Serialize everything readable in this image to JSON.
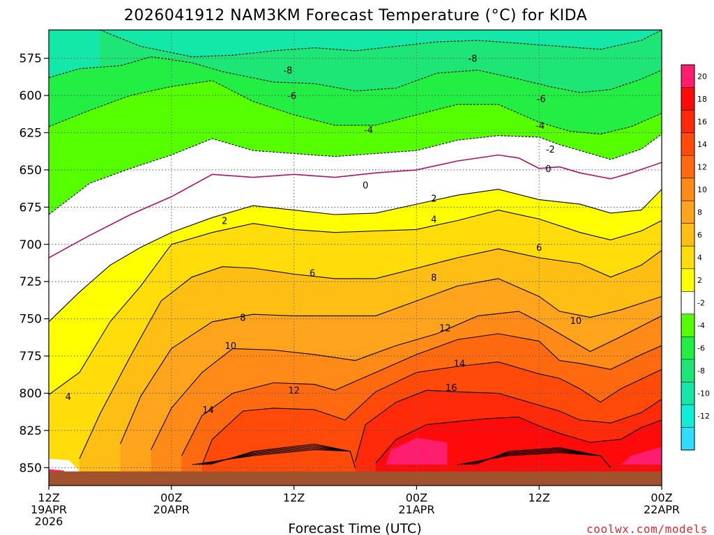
{
  "chart_data": {
    "type": "heatmap",
    "title": "2026041912 NAM3KM Forecast Temperature (°C) for KIDA",
    "xlabel": "Forecast Time (UTC)",
    "ylabel": "",
    "credit": "coolwx.com/models",
    "x_ticks": [
      {
        "hours": 0,
        "line1": "12Z",
        "line2": "19APR",
        "line3": "2026"
      },
      {
        "hours": 12,
        "line1": "00Z",
        "line2": "20APR",
        "line3": ""
      },
      {
        "hours": 24,
        "line1": "12Z",
        "line2": "",
        "line3": ""
      },
      {
        "hours": 36,
        "line1": "00Z",
        "line2": "21APR",
        "line3": ""
      },
      {
        "hours": 48,
        "line1": "12Z",
        "line2": "",
        "line3": ""
      },
      {
        "hours": 60,
        "line1": "00Z",
        "line2": "22APR",
        "line3": ""
      }
    ],
    "xlim": [
      0,
      60
    ],
    "y_ticks": [
      "575",
      "600",
      "625",
      "650",
      "675",
      "700",
      "725",
      "750",
      "775",
      "800",
      "825",
      "850"
    ],
    "y_tick_values": [
      575,
      600,
      625,
      650,
      675,
      700,
      725,
      750,
      775,
      800,
      825,
      850
    ],
    "ylim_hpa": [
      556,
      862
    ],
    "grid": true,
    "legend": "right",
    "colorbar": {
      "labels": [
        "20",
        "18",
        "16",
        "14",
        "12",
        "10",
        "8",
        "6",
        "4",
        "2",
        "-2",
        "-4",
        "-6",
        "-8",
        "-10",
        "-12"
      ],
      "bins": [
        {
          "range": "> 20",
          "color": "#ff1e6e"
        },
        {
          "range": "18 to 20",
          "color": "#ff0a0a"
        },
        {
          "range": "16 to 18",
          "color": "#ff2a0a"
        },
        {
          "range": "14 to 16",
          "color": "#ff4a0a"
        },
        {
          "range": "12 to 14",
          "color": "#ff6a10"
        },
        {
          "range": "10 to 12",
          "color": "#ff8a18"
        },
        {
          "range": "8 to 10",
          "color": "#ffa41c"
        },
        {
          "range": "6 to 8",
          "color": "#ffbe14"
        },
        {
          "range": "4 to 6",
          "color": "#ffdc0a"
        },
        {
          "range": "2 to 4",
          "color": "#ffff00"
        },
        {
          "range": "-2 to 2",
          "color": "#ffffff"
        },
        {
          "range": "-4 to -2",
          "color": "#55ff00"
        },
        {
          "range": "-6 to -4",
          "color": "#22ee44"
        },
        {
          "range": "-8 to -6",
          "color": "#1de676"
        },
        {
          "range": "-10 to -8",
          "color": "#14e8a8"
        },
        {
          "range": "-12 to -10",
          "color": "#10eed8"
        },
        {
          "range": "< -12",
          "color": "#30dcff"
        }
      ]
    },
    "contours": [
      {
        "value": -8,
        "label": "-8",
        "style": "dashed",
        "points": [
          [
            5,
            556
          ],
          [
            9,
            567
          ],
          [
            14,
            574
          ],
          [
            18,
            573
          ],
          [
            22,
            570
          ],
          [
            26,
            568
          ],
          [
            30,
            570
          ],
          [
            34,
            567
          ],
          [
            38,
            564
          ],
          [
            42,
            563
          ],
          [
            46,
            565
          ],
          [
            50,
            567
          ],
          [
            54,
            569
          ],
          [
            58,
            563
          ],
          [
            60,
            556
          ]
        ]
      },
      {
        "value": -6,
        "label": "-6",
        "style": "dashed",
        "points": [
          [
            0,
            588
          ],
          [
            3,
            582
          ],
          [
            7,
            580
          ],
          [
            10,
            574
          ],
          [
            14,
            578
          ],
          [
            17,
            584
          ],
          [
            22,
            591
          ],
          [
            26,
            592
          ],
          [
            30,
            597
          ],
          [
            34,
            595
          ],
          [
            38,
            585
          ],
          [
            42,
            583
          ],
          [
            46,
            589
          ],
          [
            49,
            594
          ],
          [
            52,
            598
          ],
          [
            55,
            596
          ],
          [
            58,
            589
          ],
          [
            60,
            583
          ]
        ]
      },
      {
        "value": -4,
        "label": "-4",
        "style": "dashed",
        "points": [
          [
            0,
            621
          ],
          [
            4,
            610
          ],
          [
            8,
            600
          ],
          [
            12,
            594
          ],
          [
            16,
            590
          ],
          [
            20,
            604
          ],
          [
            24,
            613
          ],
          [
            28,
            620
          ],
          [
            32,
            620
          ],
          [
            36,
            613
          ],
          [
            40,
            606
          ],
          [
            44,
            606
          ],
          [
            48,
            618
          ],
          [
            51,
            624
          ],
          [
            54,
            626
          ],
          [
            57,
            621
          ],
          [
            60,
            612
          ]
        ]
      },
      {
        "value": -2,
        "label": "-2",
        "style": "dashed",
        "points": [
          [
            0,
            680
          ],
          [
            4,
            659
          ],
          [
            8,
            649
          ],
          [
            12,
            640
          ],
          [
            16,
            629
          ],
          [
            20,
            637
          ],
          [
            24,
            639
          ],
          [
            28,
            641
          ],
          [
            32,
            639
          ],
          [
            36,
            637
          ],
          [
            40,
            630
          ],
          [
            44,
            627
          ],
          [
            48,
            628
          ],
          [
            50,
            633
          ],
          [
            52,
            637
          ],
          [
            55,
            643
          ],
          [
            58,
            636
          ],
          [
            60,
            626
          ]
        ]
      },
      {
        "value": 0,
        "label": "0",
        "style": "solid-magenta",
        "points": [
          [
            0,
            709
          ],
          [
            4,
            694
          ],
          [
            8,
            680
          ],
          [
            12,
            668
          ],
          [
            16,
            653
          ],
          [
            20,
            655
          ],
          [
            24,
            653
          ],
          [
            28,
            655
          ],
          [
            32,
            652
          ],
          [
            36,
            650
          ],
          [
            40,
            644
          ],
          [
            44,
            640
          ],
          [
            46,
            642
          ],
          [
            48,
            649
          ],
          [
            50,
            648
          ],
          [
            52,
            652
          ],
          [
            55,
            656
          ],
          [
            57,
            652
          ],
          [
            60,
            645
          ]
        ]
      },
      {
        "value": 2,
        "label": "2",
        "style": "solid",
        "points": [
          [
            0,
            752
          ],
          [
            3,
            732
          ],
          [
            6,
            714
          ],
          [
            9,
            702
          ],
          [
            12,
            692
          ],
          [
            16,
            682
          ],
          [
            20,
            674
          ],
          [
            24,
            677
          ],
          [
            28,
            680
          ],
          [
            32,
            679
          ],
          [
            36,
            673
          ],
          [
            40,
            667
          ],
          [
            44,
            663
          ],
          [
            48,
            670
          ],
          [
            52,
            673
          ],
          [
            55,
            679
          ],
          [
            58,
            677
          ],
          [
            60,
            663
          ]
        ]
      },
      {
        "value": 4,
        "label": "4",
        "style": "solid",
        "points": [
          [
            0,
            801
          ],
          [
            3,
            786
          ],
          [
            6,
            752
          ],
          [
            9,
            728
          ],
          [
            12,
            700
          ],
          [
            16,
            692
          ],
          [
            20,
            686
          ],
          [
            24,
            690
          ],
          [
            28,
            692
          ],
          [
            32,
            691
          ],
          [
            36,
            690
          ],
          [
            40,
            684
          ],
          [
            44,
            677
          ],
          [
            48,
            683
          ],
          [
            52,
            692
          ],
          [
            55,
            697
          ],
          [
            58,
            691
          ],
          [
            60,
            684
          ]
        ]
      },
      {
        "value": 6,
        "label": "6",
        "style": "solid",
        "points": [
          [
            3,
            844
          ],
          [
            5,
            814
          ],
          [
            8,
            775
          ],
          [
            11,
            738
          ],
          [
            14,
            722
          ],
          [
            17,
            715
          ],
          [
            20,
            716
          ],
          [
            24,
            720
          ],
          [
            28,
            723
          ],
          [
            32,
            723
          ],
          [
            36,
            716
          ],
          [
            40,
            709
          ],
          [
            44,
            703
          ],
          [
            48,
            709
          ],
          [
            52,
            713
          ],
          [
            55,
            722
          ],
          [
            58,
            714
          ],
          [
            60,
            704
          ]
        ]
      },
      {
        "value": 8,
        "label": "8",
        "style": "solid",
        "points": [
          [
            7,
            834
          ],
          [
            9,
            802
          ],
          [
            12,
            770
          ],
          [
            16,
            752
          ],
          [
            20,
            747
          ],
          [
            24,
            748
          ],
          [
            28,
            748
          ],
          [
            32,
            748
          ],
          [
            36,
            738
          ],
          [
            40,
            728
          ],
          [
            44,
            723
          ],
          [
            48,
            735
          ],
          [
            50,
            745
          ],
          [
            53,
            749
          ],
          [
            56,
            744
          ],
          [
            60,
            735
          ]
        ]
      },
      {
        "value": 10,
        "label": "10",
        "style": "solid",
        "points": [
          [
            10,
            838
          ],
          [
            12,
            810
          ],
          [
            15,
            786
          ],
          [
            18,
            770
          ],
          [
            22,
            771
          ],
          [
            26,
            774
          ],
          [
            30,
            778
          ],
          [
            34,
            768
          ],
          [
            38,
            760
          ],
          [
            42,
            748
          ],
          [
            46,
            745
          ],
          [
            48,
            752
          ],
          [
            50,
            760
          ],
          [
            53,
            772
          ],
          [
            56,
            762
          ],
          [
            60,
            748
          ]
        ]
      },
      {
        "value": 12,
        "label": "12",
        "style": "solid",
        "points": [
          [
            13,
            842
          ],
          [
            15,
            815
          ],
          [
            18,
            800
          ],
          [
            22,
            793
          ],
          [
            26,
            794
          ],
          [
            28,
            798
          ],
          [
            32,
            786
          ],
          [
            36,
            774
          ],
          [
            40,
            764
          ],
          [
            44,
            760
          ],
          [
            48,
            765
          ],
          [
            50,
            778
          ],
          [
            52,
            780
          ],
          [
            55,
            784
          ],
          [
            58,
            774
          ],
          [
            60,
            768
          ]
        ]
      },
      {
        "value": 14,
        "label": "14",
        "style": "solid",
        "points": [
          [
            15,
            848
          ],
          [
            16,
            831
          ],
          [
            19,
            812
          ],
          [
            22,
            810
          ],
          [
            26,
            811
          ],
          [
            29,
            818
          ],
          [
            32,
            799
          ],
          [
            36,
            786
          ],
          [
            40,
            782
          ],
          [
            44,
            779
          ],
          [
            48,
            787
          ],
          [
            50,
            790
          ],
          [
            52,
            797
          ],
          [
            54,
            806
          ],
          [
            56,
            797
          ],
          [
            60,
            784
          ]
        ]
      },
      {
        "value": 16,
        "label": "16",
        "style": "solid",
        "points": [
          [
            30,
            846
          ],
          [
            31,
            821
          ],
          [
            34,
            806
          ],
          [
            37,
            798
          ],
          [
            40,
            799
          ],
          [
            44,
            800
          ],
          [
            47,
            806
          ],
          [
            50,
            812
          ],
          [
            52,
            818
          ],
          [
            55,
            820
          ],
          [
            58,
            813
          ],
          [
            60,
            804
          ]
        ]
      },
      {
        "value": 18,
        "label": "18",
        "style": "solid",
        "points": [
          [
            32,
            847
          ],
          [
            34,
            831
          ],
          [
            37,
            821
          ],
          [
            40,
            819
          ],
          [
            43,
            817
          ],
          [
            46,
            816
          ],
          [
            48,
            822
          ],
          [
            50,
            827
          ],
          [
            53,
            833
          ],
          [
            56,
            831
          ],
          [
            58,
            823
          ],
          [
            60,
            818
          ]
        ]
      }
    ],
    "contour_labels": [
      {
        "text": "-8",
        "hours": 41.5,
        "hpa": 575
      },
      {
        "text": "-8",
        "hours": 23.4,
        "hpa": 583
      },
      {
        "text": "-6",
        "hours": 23.8,
        "hpa": 600
      },
      {
        "text": "-6",
        "hours": 48.2,
        "hpa": 602
      },
      {
        "text": "-4",
        "hours": 31.3,
        "hpa": 623
      },
      {
        "text": "-4",
        "hours": 48.1,
        "hpa": 620
      },
      {
        "text": "-2",
        "hours": 49.1,
        "hpa": 636
      },
      {
        "text": "0",
        "hours": 31.0,
        "hpa": 660
      },
      {
        "text": "0",
        "hours": 48.9,
        "hpa": 649
      },
      {
        "text": "2",
        "hours": 17.2,
        "hpa": 684
      },
      {
        "text": "2",
        "hours": 37.7,
        "hpa": 669
      },
      {
        "text": "4",
        "hours": 37.7,
        "hpa": 683
      },
      {
        "text": "6",
        "hours": 25.8,
        "hpa": 719
      },
      {
        "text": "6",
        "hours": 48.0,
        "hpa": 702
      },
      {
        "text": "8",
        "hours": 19.0,
        "hpa": 749
      },
      {
        "text": "8",
        "hours": 37.7,
        "hpa": 722
      },
      {
        "text": "10",
        "hours": 17.8,
        "hpa": 768
      },
      {
        "text": "10",
        "hours": 51.6,
        "hpa": 751
      },
      {
        "text": "12",
        "hours": 24.0,
        "hpa": 798
      },
      {
        "text": "12",
        "hours": 38.8,
        "hpa": 756
      },
      {
        "text": "14",
        "hours": 15.6,
        "hpa": 811
      },
      {
        "text": "14",
        "hours": 40.2,
        "hpa": 780
      },
      {
        "text": "16",
        "hours": 39.4,
        "hpa": 796
      },
      {
        "text": "4",
        "hours": 1.9,
        "hpa": 802
      }
    ]
  }
}
